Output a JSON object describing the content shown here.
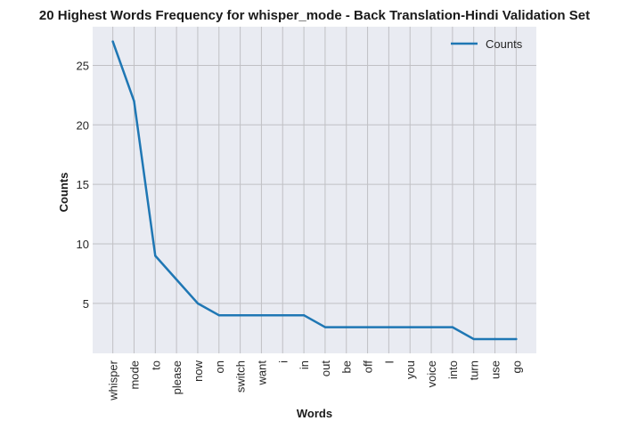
{
  "chart_data": {
    "type": "line",
    "title": "20 Highest Words Frequency for whisper_mode - Back Translation-Hindi Validation Set",
    "xlabel": "Words",
    "ylabel": "Counts",
    "categories": [
      "whisper",
      "mode",
      "to",
      "please",
      "now",
      "on",
      "switch",
      "want",
      "i",
      "in",
      "out",
      "be",
      "off",
      "I",
      "you",
      "voice",
      "into",
      "turn",
      "use",
      "go"
    ],
    "series": [
      {
        "name": "Counts",
        "values": [
          27,
          22,
          9,
          7,
          5,
          4,
          4,
          4,
          4,
          4,
          3,
          3,
          3,
          3,
          3,
          3,
          3,
          2,
          2,
          2
        ],
        "color": "#1f77b4"
      }
    ],
    "ylim": [
      0.8,
      28.25
    ],
    "yticks": [
      5,
      10,
      15,
      20,
      25
    ],
    "grid": true,
    "legend_position": "top-right",
    "background_color": "#e9ebf2",
    "grid_color": "#c0c0c4"
  }
}
